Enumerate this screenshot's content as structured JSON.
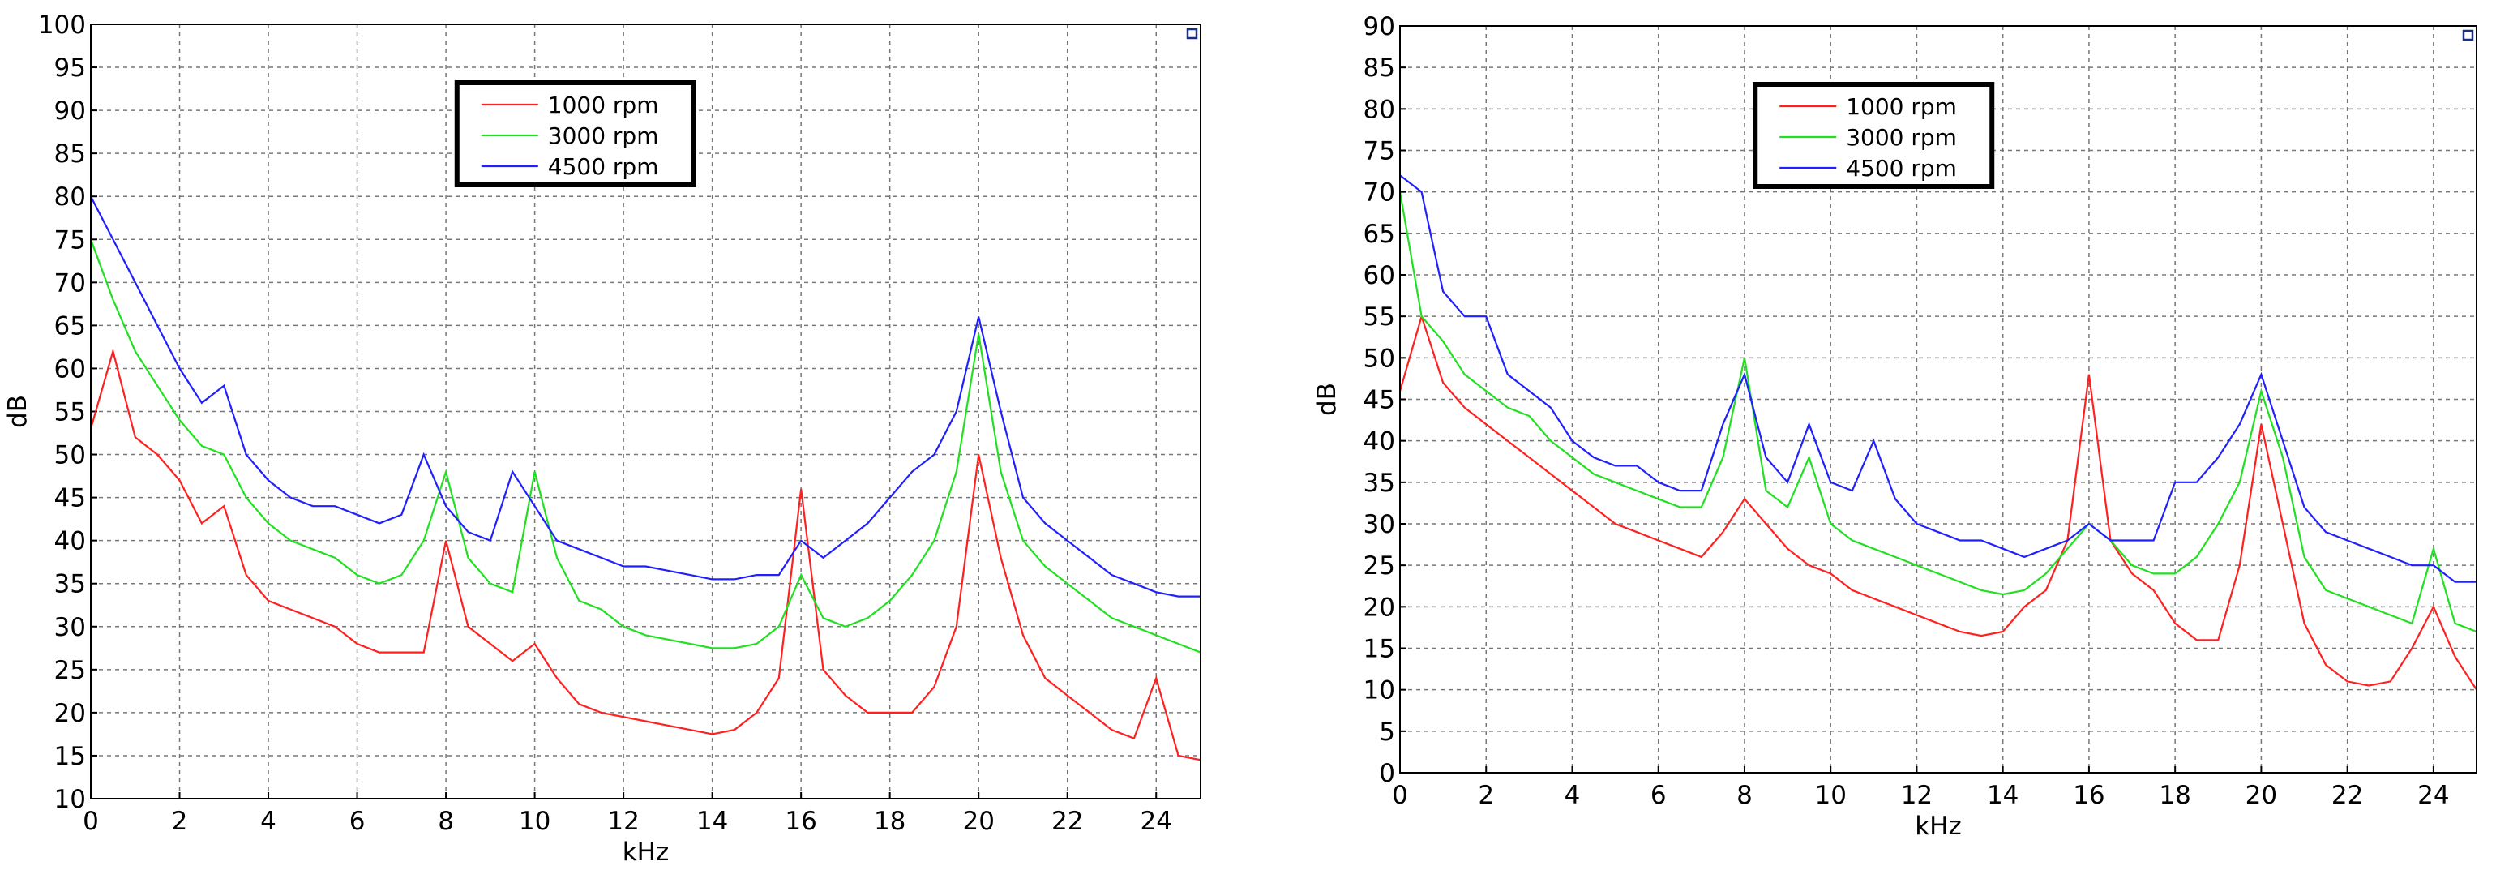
{
  "chart_data": [
    {
      "type": "line",
      "xlabel": "kHz",
      "ylabel": "dB",
      "xlim": [
        0,
        25
      ],
      "xticks": [
        0,
        2,
        4,
        6,
        8,
        10,
        12,
        14,
        16,
        18,
        20,
        22,
        24
      ],
      "ylim": [
        10,
        100
      ],
      "yticks": [
        10,
        15,
        20,
        25,
        30,
        35,
        40,
        45,
        50,
        55,
        60,
        65,
        70,
        75,
        80,
        85,
        90,
        95,
        100
      ],
      "grid": true,
      "legend": "top",
      "x": [
        0,
        0.5,
        1,
        1.5,
        2,
        2.5,
        3,
        3.5,
        4,
        4.5,
        5,
        5.5,
        6,
        6.5,
        7,
        7.5,
        8,
        8.5,
        9,
        9.5,
        10,
        10.5,
        11,
        11.5,
        12,
        12.5,
        13,
        13.5,
        14,
        14.5,
        15,
        15.5,
        16,
        16.5,
        17,
        17.5,
        18,
        18.5,
        19,
        19.5,
        20,
        20.5,
        21,
        21.5,
        22,
        22.5,
        23,
        23.5,
        24,
        24.5,
        25
      ],
      "series": [
        {
          "name": "1000 rpm",
          "color": "#ff2020",
          "values": [
            53,
            62,
            52,
            50,
            47,
            42,
            44,
            36,
            33,
            32,
            31,
            30,
            28,
            27,
            27,
            27,
            40,
            30,
            28,
            26,
            28,
            24,
            21,
            20,
            19.5,
            19,
            18.5,
            18,
            17.5,
            18,
            20,
            24,
            46,
            25,
            22,
            20,
            20,
            20,
            23,
            30,
            50,
            38,
            29,
            24,
            22,
            20,
            18,
            17,
            24,
            15,
            14.5
          ]
        },
        {
          "name": "3000 rpm",
          "color": "#20e020",
          "values": [
            75,
            68,
            62,
            58,
            54,
            51,
            50,
            45,
            42,
            40,
            39,
            38,
            36,
            35,
            36,
            40,
            48,
            38,
            35,
            34,
            48,
            38,
            33,
            32,
            30,
            29,
            28.5,
            28,
            27.5,
            27.5,
            28,
            30,
            36,
            31,
            30,
            31,
            33,
            36,
            40,
            48,
            64,
            48,
            40,
            37,
            35,
            33,
            31,
            30,
            29,
            28,
            27
          ]
        },
        {
          "name": "4500 rpm",
          "color": "#2020ff",
          "values": [
            80,
            75,
            70,
            65,
            60,
            56,
            58,
            50,
            47,
            45,
            44,
            44,
            43,
            42,
            43,
            50,
            44,
            41,
            40,
            48,
            44,
            40,
            39,
            38,
            37,
            37,
            36.5,
            36,
            35.5,
            35.5,
            36,
            36,
            40,
            38,
            40,
            42,
            45,
            48,
            50,
            55,
            66,
            55,
            45,
            42,
            40,
            38,
            36,
            35,
            34,
            33.5,
            33.5
          ]
        }
      ]
    },
    {
      "type": "line",
      "xlabel": "kHz",
      "ylabel": "dB",
      "xlim": [
        0,
        25
      ],
      "xticks": [
        0,
        2,
        4,
        6,
        8,
        10,
        12,
        14,
        16,
        18,
        20,
        22,
        24
      ],
      "ylim": [
        0,
        90
      ],
      "yticks": [
        0,
        5,
        10,
        15,
        20,
        25,
        30,
        35,
        40,
        45,
        50,
        55,
        60,
        65,
        70,
        75,
        80,
        85,
        90
      ],
      "grid": true,
      "legend": "top",
      "x": [
        0,
        0.5,
        1,
        1.5,
        2,
        2.5,
        3,
        3.5,
        4,
        4.5,
        5,
        5.5,
        6,
        6.5,
        7,
        7.5,
        8,
        8.5,
        9,
        9.5,
        10,
        10.5,
        11,
        11.5,
        12,
        12.5,
        13,
        13.5,
        14,
        14.5,
        15,
        15.5,
        16,
        16.5,
        17,
        17.5,
        18,
        18.5,
        19,
        19.5,
        20,
        20.5,
        21,
        21.5,
        22,
        22.5,
        23,
        23.5,
        24,
        24.5,
        25
      ],
      "series": [
        {
          "name": "1000 rpm",
          "color": "#ff2020",
          "values": [
            46,
            55,
            47,
            44,
            42,
            40,
            38,
            36,
            34,
            32,
            30,
            29,
            28,
            27,
            26,
            29,
            33,
            30,
            27,
            25,
            24,
            22,
            21,
            20,
            19,
            18,
            17,
            16.5,
            17,
            20,
            22,
            28,
            48,
            28,
            24,
            22,
            18,
            16,
            16,
            25,
            42,
            30,
            18,
            13,
            11,
            10.5,
            11,
            15,
            20,
            14,
            10
          ]
        },
        {
          "name": "3000 rpm",
          "color": "#20e020",
          "values": [
            70,
            55,
            52,
            48,
            46,
            44,
            43,
            40,
            38,
            36,
            35,
            34,
            33,
            32,
            32,
            38,
            50,
            34,
            32,
            38,
            30,
            28,
            27,
            26,
            25,
            24,
            23,
            22,
            21.5,
            22,
            24,
            27,
            30,
            28,
            25,
            24,
            24,
            26,
            30,
            35,
            46,
            38,
            26,
            22,
            21,
            20,
            19,
            18,
            27,
            18,
            17
          ]
        },
        {
          "name": "4500 rpm",
          "color": "#2020ff",
          "values": [
            72,
            70,
            58,
            55,
            55,
            48,
            46,
            44,
            40,
            38,
            37,
            37,
            35,
            34,
            34,
            42,
            48,
            38,
            35,
            42,
            35,
            34,
            40,
            33,
            30,
            29,
            28,
            28,
            27,
            26,
            27,
            28,
            30,
            28,
            28,
            28,
            35,
            35,
            38,
            42,
            48,
            40,
            32,
            29,
            28,
            27,
            26,
            25,
            25,
            23,
            23
          ]
        }
      ]
    }
  ]
}
